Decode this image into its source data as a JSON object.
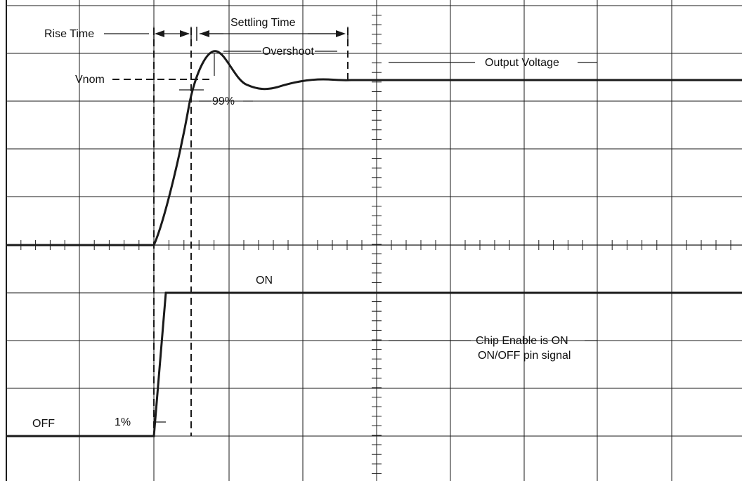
{
  "labels": {
    "rise_time": "Rise Time",
    "settling_time": "Settling Time",
    "overshoot": "Overshoot",
    "vnom": "Vnom",
    "pct99": "99%",
    "output_voltage": "Output Voltage",
    "on": "ON",
    "off": "OFF",
    "pct1": "1%",
    "chip_enable_line1": "Chip Enable is ON",
    "chip_enable_line2": "ON/OFF pin signal"
  },
  "colors": {
    "background": "#ffffff",
    "grid": "#1a1a1a",
    "trace": "#1a1a1a"
  }
}
